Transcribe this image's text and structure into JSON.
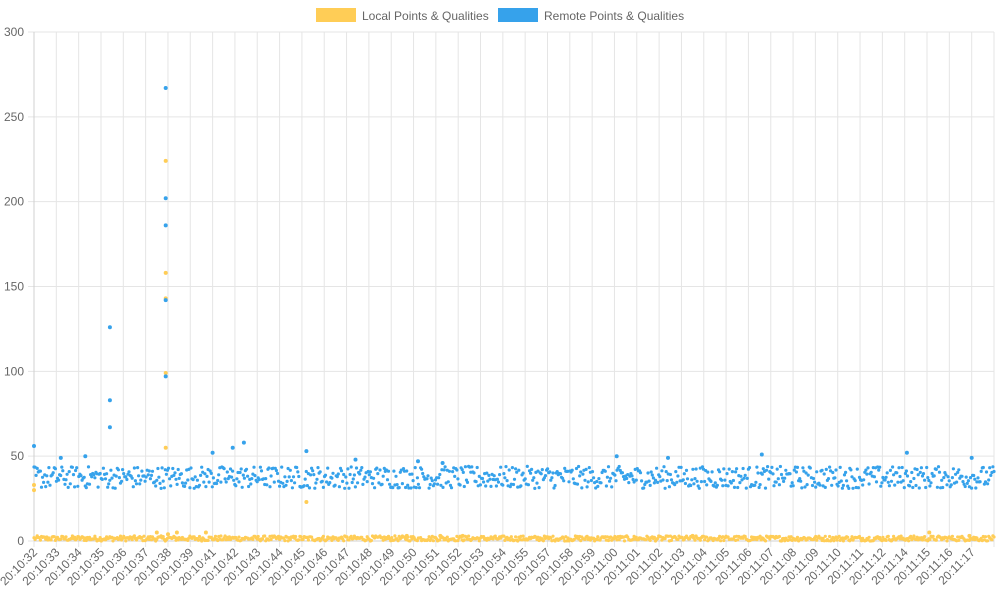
{
  "chart_data": {
    "type": "scatter",
    "title": "",
    "xlabel": "",
    "ylabel": "",
    "ylim": [
      0,
      300
    ],
    "y_ticks": [
      0,
      50,
      100,
      150,
      200,
      250,
      300
    ],
    "grid": true,
    "legend_position": "top-center",
    "x_tick_labels": [
      "20:10:32",
      "20:10:33",
      "20:10:34",
      "20:10:35",
      "20:10:36",
      "20:10:37",
      "20:10:38",
      "20:10:39",
      "20:10:41",
      "20:10:42",
      "20:10:43",
      "20:10:44",
      "20:10:45",
      "20:10:46",
      "20:10:47",
      "20:10:48",
      "20:10:49",
      "20:10:50",
      "20:10:51",
      "20:10:52",
      "20:10:53",
      "20:10:54",
      "20:10:55",
      "20:10:57",
      "20:10:58",
      "20:10:59",
      "20:11:00",
      "20:11:01",
      "20:11:02",
      "20:11:03",
      "20:11:04",
      "20:11:05",
      "20:11:06",
      "20:11:07",
      "20:11:08",
      "20:11:09",
      "20:11:10",
      "20:11:11",
      "20:11:12",
      "20:11:14",
      "20:11:15",
      "20:11:16",
      "20:11:17"
    ],
    "series": [
      {
        "name": "Local Points & Qualities",
        "color": "#ffcd56",
        "baseline_range": [
          0,
          3
        ],
        "points": [
          {
            "x": 0.0,
            "y": 30
          },
          {
            "x": 0.0,
            "y": 33
          },
          {
            "x": 5.5,
            "y": 5
          },
          {
            "x": 5.9,
            "y": 224
          },
          {
            "x": 5.9,
            "y": 158
          },
          {
            "x": 5.9,
            "y": 143
          },
          {
            "x": 5.9,
            "y": 99
          },
          {
            "x": 5.9,
            "y": 55
          },
          {
            "x": 6.0,
            "y": 4
          },
          {
            "x": 6.4,
            "y": 5
          },
          {
            "x": 7.7,
            "y": 5
          },
          {
            "x": 12.2,
            "y": 23
          },
          {
            "x": 16.7,
            "y": 3
          },
          {
            "x": 18.2,
            "y": 3
          },
          {
            "x": 19.2,
            "y": 3
          },
          {
            "x": 29.5,
            "y": 3
          },
          {
            "x": 40.1,
            "y": 5
          },
          {
            "x": 41.9,
            "y": 3
          }
        ]
      },
      {
        "name": "Remote Points & Qualities",
        "color": "#36a2eb",
        "baseline_range": [
          31,
          44
        ],
        "points": [
          {
            "x": 0.0,
            "y": 56
          },
          {
            "x": 1.2,
            "y": 49
          },
          {
            "x": 2.3,
            "y": 50
          },
          {
            "x": 3.4,
            "y": 126
          },
          {
            "x": 3.4,
            "y": 83
          },
          {
            "x": 3.4,
            "y": 67
          },
          {
            "x": 5.9,
            "y": 267
          },
          {
            "x": 5.9,
            "y": 202
          },
          {
            "x": 5.9,
            "y": 186
          },
          {
            "x": 5.9,
            "y": 142
          },
          {
            "x": 5.9,
            "y": 97
          },
          {
            "x": 8.0,
            "y": 52
          },
          {
            "x": 8.9,
            "y": 55
          },
          {
            "x": 9.4,
            "y": 58
          },
          {
            "x": 12.2,
            "y": 53
          },
          {
            "x": 14.4,
            "y": 48
          },
          {
            "x": 17.2,
            "y": 47
          },
          {
            "x": 18.3,
            "y": 46
          },
          {
            "x": 26.1,
            "y": 50
          },
          {
            "x": 28.4,
            "y": 49
          },
          {
            "x": 32.6,
            "y": 51
          },
          {
            "x": 39.1,
            "y": 52
          },
          {
            "x": 42.0,
            "y": 49
          }
        ]
      }
    ]
  }
}
